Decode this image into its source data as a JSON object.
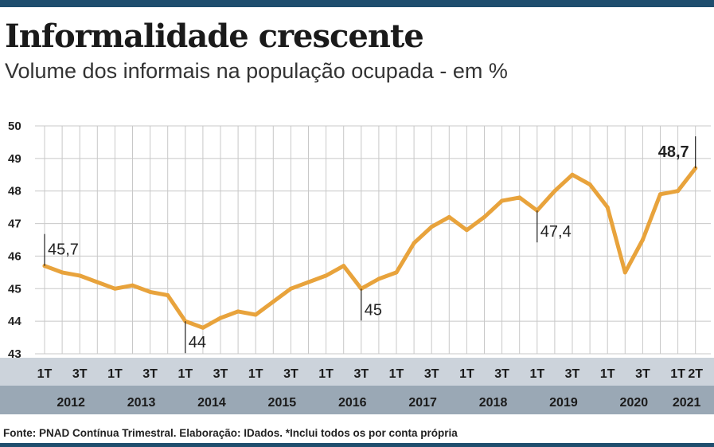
{
  "header": {
    "title": "Informalidade crescente",
    "subtitle": "Volume dos informais na população ocupada - em %"
  },
  "footer": {
    "source": "Fonte: PNAD Contínua Trimestral. Elaboração: IDados. *Inclui todos os por conta própria"
  },
  "colors": {
    "line": "#e8a33c",
    "quarter_band": "#ccd3db",
    "year_band": "#9aa8b5",
    "grid": "#c8c8c8",
    "bars": "#1f4e6e"
  },
  "chart_data": {
    "type": "line",
    "title": "Informalidade crescente",
    "subtitle": "Volume dos informais na população ocupada - em %",
    "ylim": [
      43,
      50
    ],
    "y_ticks": [
      "43",
      "44",
      "45",
      "46",
      "47",
      "48",
      "49",
      "50"
    ],
    "grid": true,
    "x": [
      "2012-1T",
      "2012-2T",
      "2012-3T",
      "2012-4T",
      "2013-1T",
      "2013-2T",
      "2013-3T",
      "2013-4T",
      "2014-1T",
      "2014-2T",
      "2014-3T",
      "2014-4T",
      "2015-1T",
      "2015-2T",
      "2015-3T",
      "2015-4T",
      "2016-1T",
      "2016-2T",
      "2016-3T",
      "2016-4T",
      "2017-1T",
      "2017-2T",
      "2017-3T",
      "2017-4T",
      "2018-1T",
      "2018-2T",
      "2018-3T",
      "2018-4T",
      "2019-1T",
      "2019-2T",
      "2019-3T",
      "2019-4T",
      "2020-1T",
      "2020-2T",
      "2020-3T",
      "2020-4T",
      "2021-1T",
      "2021-2T"
    ],
    "series": [
      {
        "values": [
          45.7,
          45.5,
          45.4,
          45.2,
          45.0,
          45.1,
          44.9,
          44.8,
          44.0,
          43.8,
          44.1,
          44.3,
          44.2,
          44.6,
          45.0,
          45.2,
          45.4,
          45.7,
          45.0,
          45.3,
          45.5,
          46.4,
          46.9,
          47.2,
          46.8,
          47.2,
          47.7,
          47.8,
          47.4,
          48.0,
          48.5,
          48.2,
          47.5,
          45.5,
          46.5,
          47.9,
          48.0,
          48.7
        ]
      }
    ],
    "annotations": [
      {
        "index": 0,
        "label": "45,7",
        "bold": false,
        "side": "right",
        "tick": "up"
      },
      {
        "index": 8,
        "label": "44",
        "bold": false,
        "side": "right",
        "tick": "down"
      },
      {
        "index": 18,
        "label": "45",
        "bold": false,
        "side": "right",
        "tick": "down"
      },
      {
        "index": 28,
        "label": "47,4",
        "bold": false,
        "side": "right",
        "tick": "down"
      },
      {
        "index": 37,
        "label": "48,7",
        "bold": true,
        "side": "left",
        "tick": "up"
      }
    ],
    "quarter_labels": [
      {
        "index": 0,
        "label": "1T"
      },
      {
        "index": 2,
        "label": "3T"
      },
      {
        "index": 4,
        "label": "1T"
      },
      {
        "index": 6,
        "label": "3T"
      },
      {
        "index": 8,
        "label": "1T"
      },
      {
        "index": 10,
        "label": "3T"
      },
      {
        "index": 12,
        "label": "1T"
      },
      {
        "index": 14,
        "label": "3T"
      },
      {
        "index": 16,
        "label": "1T"
      },
      {
        "index": 18,
        "label": "3T"
      },
      {
        "index": 20,
        "label": "1T"
      },
      {
        "index": 22,
        "label": "3T"
      },
      {
        "index": 24,
        "label": "1T"
      },
      {
        "index": 26,
        "label": "3T"
      },
      {
        "index": 28,
        "label": "1T"
      },
      {
        "index": 30,
        "label": "3T"
      },
      {
        "index": 32,
        "label": "1T"
      },
      {
        "index": 34,
        "label": "3T"
      },
      {
        "index": 36,
        "label": "1T"
      },
      {
        "index": 37,
        "label": "2T"
      }
    ],
    "years": [
      {
        "label": "2012",
        "start": 0,
        "end": 3
      },
      {
        "label": "2013",
        "start": 4,
        "end": 7
      },
      {
        "label": "2014",
        "start": 8,
        "end": 11
      },
      {
        "label": "2015",
        "start": 12,
        "end": 15
      },
      {
        "label": "2016",
        "start": 16,
        "end": 19
      },
      {
        "label": "2017",
        "start": 20,
        "end": 23
      },
      {
        "label": "2018",
        "start": 24,
        "end": 27
      },
      {
        "label": "2019",
        "start": 28,
        "end": 31
      },
      {
        "label": "2020",
        "start": 32,
        "end": 35
      },
      {
        "label": "2021",
        "start": 36,
        "end": 37
      }
    ]
  }
}
